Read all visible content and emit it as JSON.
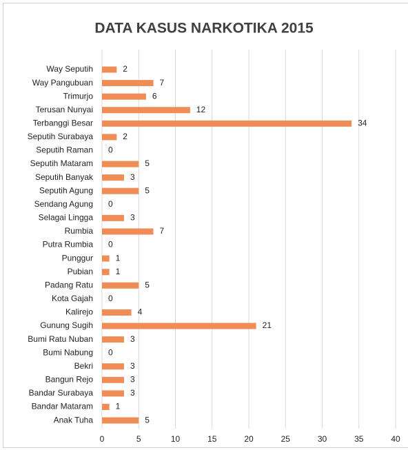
{
  "chart_data": {
    "type": "bar",
    "orientation": "horizontal",
    "title": "DATA KASUS NARKOTIKA 2015",
    "categories": [
      "Way Seputih",
      "Way Pangubuan",
      "Trimurjo",
      "Terusan Nunyai",
      "Terbanggi Besar",
      "Seputih Surabaya",
      "Seputih Raman",
      "Seputih Mataram",
      "Seputih Banyak",
      "Seputih Agung",
      "Sendang Agung",
      "Selagai Lingga",
      "Rumbia",
      "Putra Rumbia",
      "Punggur",
      "Pubian",
      "Padang Ratu",
      "Kota Gajah",
      "Kalirejo",
      "Gunung Sugih",
      "Bumi Ratu Nuban",
      "Bumi Nabung",
      "Bekri",
      "Bangun Rejo",
      "Bandar Surabaya",
      "Bandar Mataram",
      "Anak Tuha"
    ],
    "values": [
      2,
      7,
      6,
      12,
      34,
      2,
      0,
      5,
      3,
      5,
      0,
      3,
      7,
      0,
      1,
      1,
      5,
      0,
      4,
      21,
      3,
      0,
      3,
      3,
      3,
      1,
      5
    ],
    "color": "#f08c55",
    "xlim": [
      0,
      40
    ],
    "xticks": [
      0,
      5,
      10,
      15,
      20,
      25,
      30,
      35,
      40
    ],
    "grid": true
  }
}
